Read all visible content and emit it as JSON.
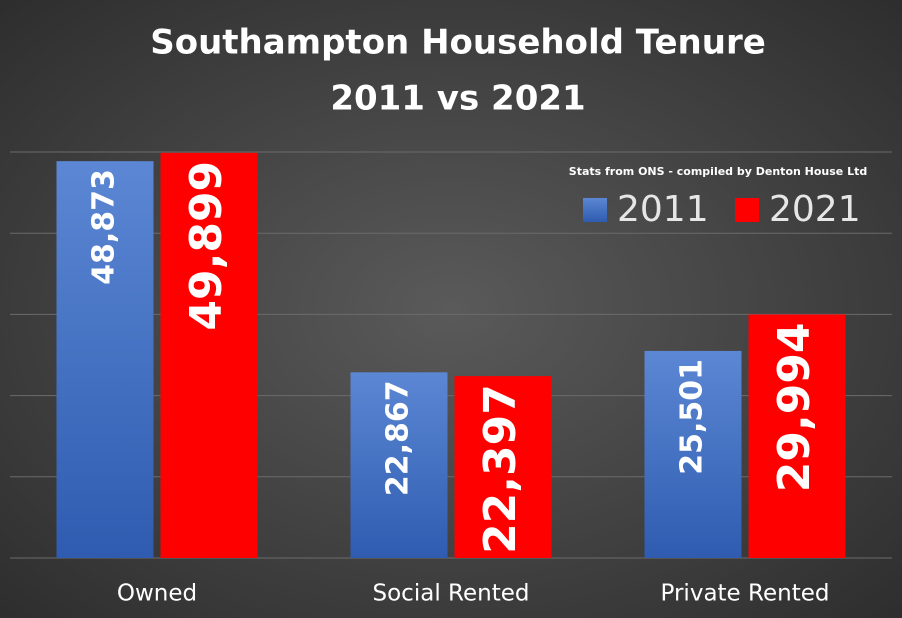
{
  "chart_data": {
    "type": "bar",
    "title": [
      "Southampton Household Tenure",
      "2011 vs 2021"
    ],
    "annotation": "Stats from ONS - compiled by Denton House Ltd",
    "categories": [
      "Owned",
      "Social Rented",
      "Private Rented"
    ],
    "series": [
      {
        "name": "2011",
        "color": "#4472c4",
        "values": [
          48873,
          22867,
          25501
        ],
        "value_labels": [
          "48,873",
          "22,867",
          "25,501"
        ]
      },
      {
        "name": "2021",
        "color": "#ff0000",
        "values": [
          49899,
          22397,
          29994
        ],
        "value_labels": [
          "49,899",
          "22,397",
          "29,994"
        ]
      }
    ],
    "ylim": [
      0,
      50000
    ],
    "yticks": [
      0,
      10000,
      20000,
      30000,
      40000,
      50000
    ],
    "grid": true,
    "legend": "top-right"
  }
}
